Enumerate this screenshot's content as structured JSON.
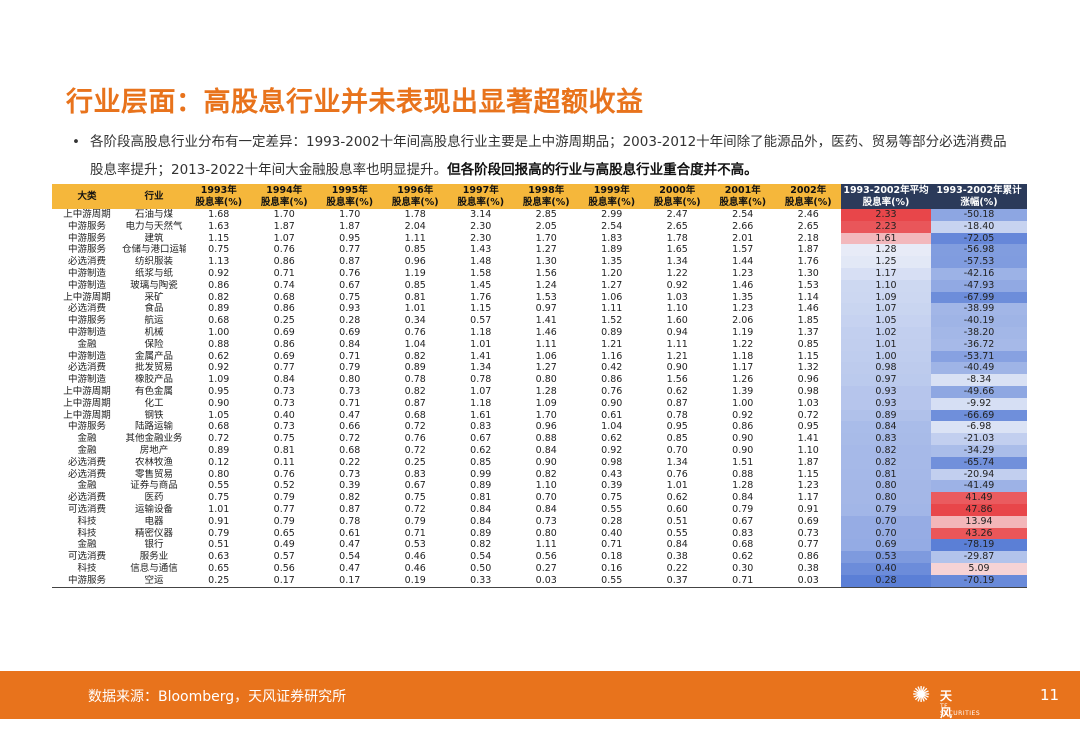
{
  "title": "行业层面：高股息行业并未表现出显著超额收益",
  "bullet": {
    "text": "各阶段高股息行业分布有一定差异：1993-2002十年间高股息行业主要是上中游周期品；2003-2012十年间除了能源品外，医药、贸易等部分必选消费品股息率提升；2013-2022十年间大金融股息率也明显提升。",
    "bold": "但各阶段回报高的行业与高股息行业重合度并不高。"
  },
  "table": {
    "headers": [
      "大类",
      "行业",
      "1993年\n股息率(%)",
      "1994年\n股息率(%)",
      "1995年\n股息率(%)",
      "1996年\n股息率(%)",
      "1997年\n股息率(%)",
      "1998年\n股息率(%)",
      "1999年\n股息率(%)",
      "2000年\n股息率(%)",
      "2001年\n股息率(%)",
      "2002年\n股息率(%)",
      "1993-2002年平均\n股息率(%)",
      "1993-2002年累计\n涨幅(%)"
    ],
    "rows": [
      [
        "上中游周期",
        "石油与煤",
        "1.68",
        "1.70",
        "1.70",
        "1.78",
        "3.14",
        "2.85",
        "2.99",
        "2.47",
        "2.54",
        "2.46",
        "2.33",
        "-50.18"
      ],
      [
        "中游服务",
        "电力与天然气",
        "1.63",
        "1.87",
        "1.87",
        "2.04",
        "2.30",
        "2.05",
        "2.54",
        "2.65",
        "2.66",
        "2.65",
        "2.23",
        "-18.40"
      ],
      [
        "中游服务",
        "建筑",
        "1.15",
        "1.07",
        "0.95",
        "1.11",
        "2.30",
        "1.70",
        "1.83",
        "1.78",
        "2.01",
        "2.18",
        "1.61",
        "-72.05"
      ],
      [
        "中游服务",
        "仓储与港口运输",
        "0.75",
        "0.76",
        "0.77",
        "0.85",
        "1.43",
        "1.27",
        "1.89",
        "1.65",
        "1.57",
        "1.87",
        "1.28",
        "-56.98"
      ],
      [
        "必选消费",
        "纺织服装",
        "1.13",
        "0.86",
        "0.87",
        "0.96",
        "1.48",
        "1.30",
        "1.35",
        "1.34",
        "1.44",
        "1.76",
        "1.25",
        "-57.53"
      ],
      [
        "中游制造",
        "纸浆与纸",
        "0.92",
        "0.71",
        "0.76",
        "1.19",
        "1.58",
        "1.56",
        "1.20",
        "1.22",
        "1.23",
        "1.30",
        "1.17",
        "-42.16"
      ],
      [
        "中游制造",
        "玻璃与陶瓷",
        "0.86",
        "0.74",
        "0.67",
        "0.85",
        "1.45",
        "1.24",
        "1.27",
        "0.92",
        "1.46",
        "1.53",
        "1.10",
        "-47.93"
      ],
      [
        "上中游周期",
        "采矿",
        "0.82",
        "0.68",
        "0.75",
        "0.81",
        "1.76",
        "1.53",
        "1.06",
        "1.03",
        "1.35",
        "1.14",
        "1.09",
        "-67.99"
      ],
      [
        "必选消费",
        "食品",
        "0.89",
        "0.86",
        "0.93",
        "1.01",
        "1.15",
        "0.97",
        "1.11",
        "1.10",
        "1.23",
        "1.46",
        "1.07",
        "-38.99"
      ],
      [
        "中游服务",
        "航运",
        "0.68",
        "0.25",
        "0.28",
        "0.34",
        "0.57",
        "1.41",
        "1.52",
        "1.60",
        "2.06",
        "1.85",
        "1.05",
        "-40.19"
      ],
      [
        "中游制造",
        "机械",
        "1.00",
        "0.69",
        "0.69",
        "0.76",
        "1.18",
        "1.46",
        "0.89",
        "0.94",
        "1.19",
        "1.37",
        "1.02",
        "-38.20"
      ],
      [
        "金融",
        "保险",
        "0.88",
        "0.86",
        "0.84",
        "1.04",
        "1.01",
        "1.11",
        "1.21",
        "1.11",
        "1.22",
        "0.85",
        "1.01",
        "-36.72"
      ],
      [
        "中游制造",
        "金属产品",
        "0.62",
        "0.69",
        "0.71",
        "0.82",
        "1.41",
        "1.06",
        "1.16",
        "1.21",
        "1.18",
        "1.15",
        "1.00",
        "-53.71"
      ],
      [
        "必选消费",
        "批发贸易",
        "0.92",
        "0.77",
        "0.79",
        "0.89",
        "1.34",
        "1.27",
        "0.42",
        "0.90",
        "1.17",
        "1.32",
        "0.98",
        "-40.49"
      ],
      [
        "中游制造",
        "橡胶产品",
        "1.09",
        "0.84",
        "0.80",
        "0.78",
        "0.78",
        "0.80",
        "0.86",
        "1.56",
        "1.26",
        "0.96",
        "0.97",
        "-8.34"
      ],
      [
        "上中游周期",
        "有色金属",
        "0.95",
        "0.73",
        "0.73",
        "0.82",
        "1.07",
        "1.28",
        "0.76",
        "0.62",
        "1.39",
        "0.98",
        "0.93",
        "-49.66"
      ],
      [
        "上中游周期",
        "化工",
        "0.90",
        "0.73",
        "0.71",
        "0.87",
        "1.18",
        "1.09",
        "0.90",
        "0.87",
        "1.00",
        "1.03",
        "0.93",
        "-9.92"
      ],
      [
        "上中游周期",
        "钢铁",
        "1.05",
        "0.40",
        "0.47",
        "0.68",
        "1.61",
        "1.70",
        "0.61",
        "0.78",
        "0.92",
        "0.72",
        "0.89",
        "-66.69"
      ],
      [
        "中游服务",
        "陆路运输",
        "0.68",
        "0.73",
        "0.66",
        "0.72",
        "0.83",
        "0.96",
        "1.04",
        "0.95",
        "0.86",
        "0.95",
        "0.84",
        "-6.98"
      ],
      [
        "金融",
        "其他金融业务",
        "0.72",
        "0.75",
        "0.72",
        "0.76",
        "0.67",
        "0.88",
        "0.62",
        "0.85",
        "0.90",
        "1.41",
        "0.83",
        "-21.03"
      ],
      [
        "金融",
        "房地产",
        "0.89",
        "0.81",
        "0.68",
        "0.72",
        "0.62",
        "0.84",
        "0.92",
        "0.70",
        "0.90",
        "1.10",
        "0.82",
        "-34.29"
      ],
      [
        "必选消费",
        "农林牧渔",
        "0.12",
        "0.11",
        "0.22",
        "0.25",
        "0.85",
        "0.90",
        "0.98",
        "1.34",
        "1.51",
        "1.87",
        "0.82",
        "-65.74"
      ],
      [
        "必选消费",
        "零售贸易",
        "0.80",
        "0.76",
        "0.73",
        "0.83",
        "0.99",
        "0.82",
        "0.43",
        "0.76",
        "0.88",
        "1.15",
        "0.81",
        "-20.94"
      ],
      [
        "金融",
        "证券与商品",
        "0.55",
        "0.52",
        "0.39",
        "0.67",
        "0.89",
        "1.10",
        "0.39",
        "1.01",
        "1.28",
        "1.23",
        "0.80",
        "-41.49"
      ],
      [
        "必选消费",
        "医药",
        "0.75",
        "0.79",
        "0.82",
        "0.75",
        "0.81",
        "0.70",
        "0.75",
        "0.62",
        "0.84",
        "1.17",
        "0.80",
        "41.49"
      ],
      [
        "可选消费",
        "运输设备",
        "1.01",
        "0.77",
        "0.87",
        "0.72",
        "0.84",
        "0.84",
        "0.55",
        "0.60",
        "0.79",
        "0.91",
        "0.79",
        "47.86"
      ],
      [
        "科技",
        "电器",
        "0.91",
        "0.79",
        "0.78",
        "0.79",
        "0.84",
        "0.73",
        "0.28",
        "0.51",
        "0.67",
        "0.69",
        "0.70",
        "13.94"
      ],
      [
        "科技",
        "精密仪器",
        "0.79",
        "0.65",
        "0.61",
        "0.71",
        "0.89",
        "0.80",
        "0.40",
        "0.55",
        "0.83",
        "0.73",
        "0.70",
        "43.26"
      ],
      [
        "金融",
        "银行",
        "0.51",
        "0.49",
        "0.47",
        "0.53",
        "0.82",
        "1.11",
        "0.71",
        "0.84",
        "0.68",
        "0.77",
        "0.69",
        "-78.19"
      ],
      [
        "可选消费",
        "服务业",
        "0.63",
        "0.57",
        "0.54",
        "0.46",
        "0.54",
        "0.56",
        "0.18",
        "0.38",
        "0.62",
        "0.86",
        "0.53",
        "-29.87"
      ],
      [
        "科技",
        "信息与通信",
        "0.65",
        "0.56",
        "0.47",
        "0.46",
        "0.50",
        "0.27",
        "0.16",
        "0.22",
        "0.30",
        "0.38",
        "0.40",
        "5.09"
      ],
      [
        "中游服务",
        "空运",
        "0.25",
        "0.17",
        "0.17",
        "0.19",
        "0.33",
        "0.03",
        "0.55",
        "0.37",
        "0.71",
        "0.03",
        "0.28",
        "-70.19"
      ]
    ]
  },
  "colors": {
    "accent": "#e8731c",
    "header_bg": "#f5b73b",
    "header_dark": "#2b3a5a",
    "heat_red": "#e8464a",
    "heat_blue": "#5b7fd6"
  },
  "footer": {
    "source": "数据来源：Bloomberg，天风证券研究所",
    "logo_cn": "天风证券",
    "logo_en": "TF SECURITIES",
    "logo_icon": "tf-logo-icon",
    "page": "11"
  }
}
